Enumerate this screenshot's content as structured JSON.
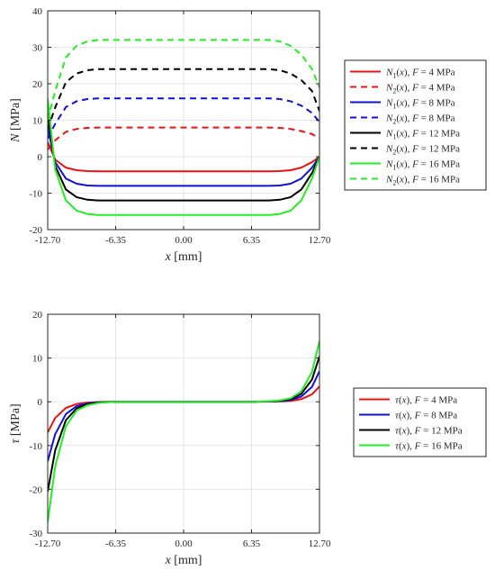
{
  "colors": {
    "red": "#ee1111",
    "blue": "#1111dd",
    "black": "#000000",
    "green": "#22ee22",
    "grid": "#e6e6e6",
    "axis": "#262626"
  },
  "chart_data": [
    {
      "type": "line",
      "xlabel": "x [mm]",
      "ylabel": "N [MPa]",
      "xlim": [
        -12.7,
        12.7
      ],
      "ylim": [
        -20,
        40
      ],
      "xticks": [
        -12.7,
        -6.35,
        0.0,
        6.35,
        12.7
      ],
      "xtick_labels": [
        "-12.70",
        "-6.35",
        "0.00",
        "6.35",
        "12.70"
      ],
      "yticks": [
        -20,
        -10,
        0,
        10,
        20,
        30,
        40
      ],
      "ytick_labels": [
        "-20",
        "-10",
        "0",
        "10",
        "20",
        "30",
        "40"
      ],
      "grid": true,
      "legend_position": "outside-right",
      "x": [
        -12.7,
        -12.0,
        -11.0,
        -10.0,
        -9.0,
        -8.0,
        -6.35,
        0.0,
        6.35,
        8.0,
        9.0,
        10.0,
        11.0,
        12.0,
        12.7
      ],
      "series": [
        {
          "name": "N1(x), F = 4 MPa",
          "color": "red",
          "style": "solid",
          "values": [
            4.0,
            -0.8,
            -3.0,
            -3.7,
            -3.95,
            -4.0,
            -4.0,
            -4.0,
            -4.0,
            -4.0,
            -3.95,
            -3.7,
            -3.0,
            -1.5,
            0.0
          ]
        },
        {
          "name": "N2(x), F = 4 MPa",
          "color": "red",
          "style": "dashed",
          "values": [
            2.0,
            4.5,
            6.8,
            7.6,
            7.9,
            8.0,
            8.0,
            8.0,
            8.0,
            8.0,
            7.9,
            7.6,
            7.0,
            6.2,
            5.0
          ]
        },
        {
          "name": "N1(x), F = 8 MPa",
          "color": "blue",
          "style": "solid",
          "values": [
            8.0,
            -1.5,
            -6.0,
            -7.4,
            -7.9,
            -8.0,
            -8.0,
            -8.0,
            -8.0,
            -8.0,
            -7.9,
            -7.4,
            -6.0,
            -3.0,
            0.0
          ]
        },
        {
          "name": "N2(x), F = 8 MPa",
          "color": "blue",
          "style": "dashed",
          "values": [
            5.0,
            9.0,
            13.6,
            15.2,
            15.8,
            16.0,
            16.0,
            16.0,
            16.0,
            16.0,
            15.8,
            15.2,
            14.0,
            12.0,
            9.5
          ]
        },
        {
          "name": "N1(x), F = 12 MPa",
          "color": "black",
          "style": "solid",
          "values": [
            12.0,
            -2.5,
            -9.0,
            -11.1,
            -11.8,
            -12.0,
            -12.0,
            -12.0,
            -12.0,
            -12.0,
            -11.8,
            -11.1,
            -9.0,
            -4.5,
            0.0
          ]
        },
        {
          "name": "N2(x), F = 12 MPa",
          "color": "black",
          "style": "dashed",
          "values": [
            7.5,
            13.5,
            20.4,
            22.8,
            23.7,
            24.0,
            24.0,
            24.0,
            24.0,
            24.0,
            23.7,
            22.8,
            21.0,
            18.0,
            12.5
          ]
        },
        {
          "name": "N1(x), F = 16 MPa",
          "color": "green",
          "style": "solid",
          "values": [
            16.0,
            -3.5,
            -12.0,
            -14.8,
            -15.7,
            -16.0,
            -16.0,
            -16.0,
            -16.0,
            -16.0,
            -15.7,
            -14.8,
            -12.0,
            -6.0,
            0.0
          ]
        },
        {
          "name": "N2(x), F = 16 MPa",
          "color": "green",
          "style": "dashed",
          "values": [
            10.0,
            18.0,
            27.2,
            30.4,
            31.6,
            32.0,
            32.0,
            32.0,
            32.0,
            32.0,
            31.6,
            30.4,
            28.0,
            24.0,
            19.0
          ]
        }
      ]
    },
    {
      "type": "line",
      "xlabel": "x [mm]",
      "ylabel": "τ [MPa]",
      "xlim": [
        -12.7,
        12.7
      ],
      "ylim": [
        -30,
        20
      ],
      "xticks": [
        -12.7,
        -6.35,
        0.0,
        6.35,
        12.7
      ],
      "xtick_labels": [
        "-12.70",
        "-6.35",
        "0.00",
        "6.35",
        "12.70"
      ],
      "yticks": [
        -30,
        -20,
        -10,
        0,
        10,
        20
      ],
      "ytick_labels": [
        "-30",
        "-20",
        "-10",
        "0",
        "10",
        "20"
      ],
      "grid": true,
      "legend_position": "outside-right",
      "x": [
        -12.7,
        -12.0,
        -11.0,
        -10.0,
        -9.0,
        -8.0,
        -7.0,
        -6.35,
        0.0,
        6.35,
        7.0,
        8.0,
        9.0,
        10.0,
        11.0,
        12.0,
        12.7
      ],
      "series": [
        {
          "name": "τ(x), F = 4 MPa",
          "color": "red",
          "style": "solid",
          "values": [
            -7.0,
            -3.7,
            -1.4,
            -0.5,
            -0.2,
            -0.07,
            -0.02,
            0.0,
            0.0,
            0.0,
            0.01,
            0.03,
            0.08,
            0.2,
            0.6,
            1.7,
            3.5
          ]
        },
        {
          "name": "τ(x), F = 8 MPa",
          "color": "blue",
          "style": "solid",
          "values": [
            -13.6,
            -7.4,
            -2.8,
            -1.0,
            -0.4,
            -0.14,
            -0.04,
            0.0,
            0.0,
            0.0,
            0.02,
            0.06,
            0.16,
            0.4,
            1.2,
            3.4,
            7.0
          ]
        },
        {
          "name": "τ(x), F = 12 MPa",
          "color": "black",
          "style": "solid",
          "values": [
            -20.5,
            -11.1,
            -4.2,
            -1.5,
            -0.6,
            -0.21,
            -0.06,
            0.0,
            0.0,
            0.0,
            0.03,
            0.09,
            0.24,
            0.6,
            1.8,
            5.1,
            10.4
          ]
        },
        {
          "name": "τ(x), F = 16 MPa",
          "color": "green",
          "style": "solid",
          "values": [
            -27.5,
            -14.8,
            -5.6,
            -2.0,
            -0.8,
            -0.28,
            -0.08,
            0.0,
            0.0,
            0.0,
            0.04,
            0.12,
            0.32,
            0.8,
            2.4,
            6.8,
            13.9
          ]
        }
      ]
    }
  ]
}
